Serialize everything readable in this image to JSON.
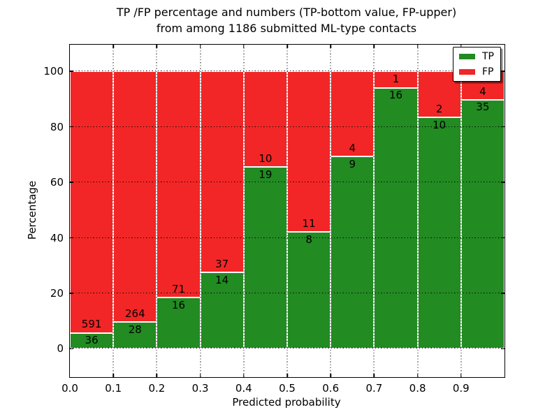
{
  "title": {
    "line1": "TP /FP percentage and numbers (TP-bottom value, FP-upper)",
    "line2": "from among 1186 submitted ML-type contacts"
  },
  "axes": {
    "xlabel": "Predicted probability",
    "ylabel": "Percentage",
    "x_tick_labels": [
      "0.0",
      "0.1",
      "0.2",
      "0.3",
      "0.4",
      "0.5",
      "0.6",
      "0.7",
      "0.8",
      "0.9"
    ],
    "y_tick_values": [
      0,
      20,
      40,
      60,
      80,
      100
    ],
    "xlim": [
      0.0,
      1.0
    ],
    "ylim": [
      -10.2,
      109.6
    ]
  },
  "legend": {
    "position": "upper right",
    "items": [
      {
        "label": "TP",
        "color": "#228b22"
      },
      {
        "label": "FP",
        "color": "#f22626"
      }
    ]
  },
  "colors": {
    "tp": "#228b22",
    "fp": "#f22626",
    "grid": "#000000",
    "background": "#ffffff",
    "bar_edge": "#ffffff"
  },
  "chart_data": {
    "type": "bar",
    "stacked": true,
    "normalized_to_percent": true,
    "title": "TP /FP percentage and numbers (TP-bottom value, FP-upper) from among 1186 submitted ML-type contacts",
    "xlabel": "Predicted probability",
    "ylabel": "Percentage",
    "total_contacts": 1186,
    "grid": true,
    "legend_position": "upper right",
    "xlim": [
      0.0,
      1.0
    ],
    "ylim": [
      -10.2,
      109.6
    ],
    "categories": [
      "0.0-0.1",
      "0.1-0.2",
      "0.2-0.3",
      "0.3-0.4",
      "0.4-0.5",
      "0.5-0.6",
      "0.6-0.7",
      "0.7-0.8",
      "0.8-0.9",
      "0.9-1.0"
    ],
    "series": [
      {
        "name": "TP",
        "color": "#228b22",
        "counts": [
          36,
          28,
          16,
          14,
          19,
          8,
          9,
          16,
          10,
          35
        ]
      },
      {
        "name": "FP",
        "color": "#f22626",
        "counts": [
          591,
          264,
          71,
          37,
          10,
          11,
          4,
          1,
          2,
          4
        ]
      }
    ],
    "tp_percent": [
      5.74,
      9.59,
      18.39,
      27.45,
      65.52,
      42.11,
      69.23,
      94.12,
      83.33,
      89.74
    ],
    "fp_percent": [
      94.26,
      90.41,
      81.61,
      72.55,
      34.48,
      57.89,
      30.77,
      5.88,
      16.67,
      10.26
    ]
  }
}
